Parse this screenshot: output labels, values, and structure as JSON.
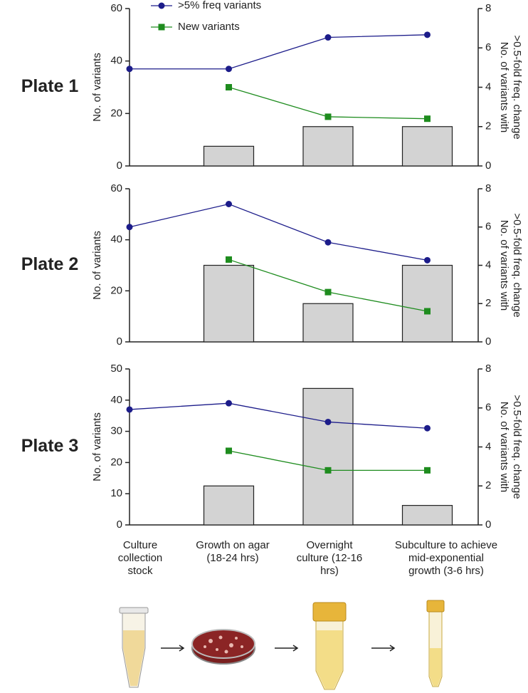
{
  "chart_data": [
    {
      "type": "combo",
      "title": "Plate 1",
      "y_label": "No. of variants",
      "y2_label": [
        "No. of variants with",
        ">0.5-fold freq. change"
      ],
      "ylim": [
        0,
        60
      ],
      "yticks": [
        0,
        20,
        40,
        60
      ],
      "y2lim": [
        0,
        8
      ],
      "y2ticks": [
        0,
        2,
        4,
        6,
        8
      ],
      "legend": "top",
      "series": [
        {
          "type": "bar",
          "axis": "y2",
          "color": "#d3d3d3",
          "values": [
            null,
            1,
            2,
            2
          ]
        },
        {
          "type": "line",
          "name": ">5% freq variants",
          "marker": "circle",
          "color": "#1c1c8a",
          "values": [
            37,
            37,
            49,
            50
          ]
        },
        {
          "type": "line",
          "name": "New variants",
          "marker": "square",
          "axis": "y2",
          "color": "#1e8c1e",
          "values": [
            null,
            4,
            2.5,
            2.4
          ]
        }
      ]
    },
    {
      "type": "combo",
      "title": "Plate 2",
      "y_label": "No. of variants",
      "y2_label": [
        "No. of variants with",
        ">0.5-fold freq. change"
      ],
      "ylim": [
        0,
        60
      ],
      "yticks": [
        0,
        20,
        40,
        60
      ],
      "y2lim": [
        0,
        8
      ],
      "y2ticks": [
        0,
        2,
        4,
        6,
        8
      ],
      "series": [
        {
          "type": "bar",
          "axis": "y2",
          "color": "#d3d3d3",
          "values": [
            null,
            4,
            2,
            4
          ]
        },
        {
          "type": "line",
          "marker": "circle",
          "color": "#1c1c8a",
          "values": [
            45,
            54,
            39,
            32
          ]
        },
        {
          "type": "line",
          "marker": "square",
          "axis": "y2",
          "color": "#1e8c1e",
          "values": [
            null,
            4.3,
            2.6,
            1.6
          ]
        }
      ]
    },
    {
      "type": "combo",
      "title": "Plate 3",
      "y_label": "No. of variants",
      "y2_label": [
        "No. of variants with",
        ">0.5-fold freq. change"
      ],
      "ylim": [
        0,
        50
      ],
      "yticks": [
        0,
        10,
        20,
        30,
        40,
        50
      ],
      "y2lim": [
        0,
        8
      ],
      "y2ticks": [
        0,
        2,
        4,
        6,
        8
      ],
      "categories": [
        "Culture collection stock",
        "Growth on agar (18-24 hrs)",
        "Overnight culture (12-16 hrs)",
        "Subculture to achieve mid-exponential growth (3-6 hrs)"
      ],
      "series": [
        {
          "type": "bar",
          "axis": "y2",
          "color": "#d3d3d3",
          "values": [
            null,
            2,
            7,
            1
          ]
        },
        {
          "type": "line",
          "marker": "circle",
          "color": "#1c1c8a",
          "values": [
            37,
            39,
            33,
            31
          ]
        },
        {
          "type": "line",
          "marker": "square",
          "axis": "y2",
          "color": "#1e8c1e",
          "values": [
            null,
            3.8,
            2.8,
            2.8
          ]
        }
      ]
    }
  ]
}
